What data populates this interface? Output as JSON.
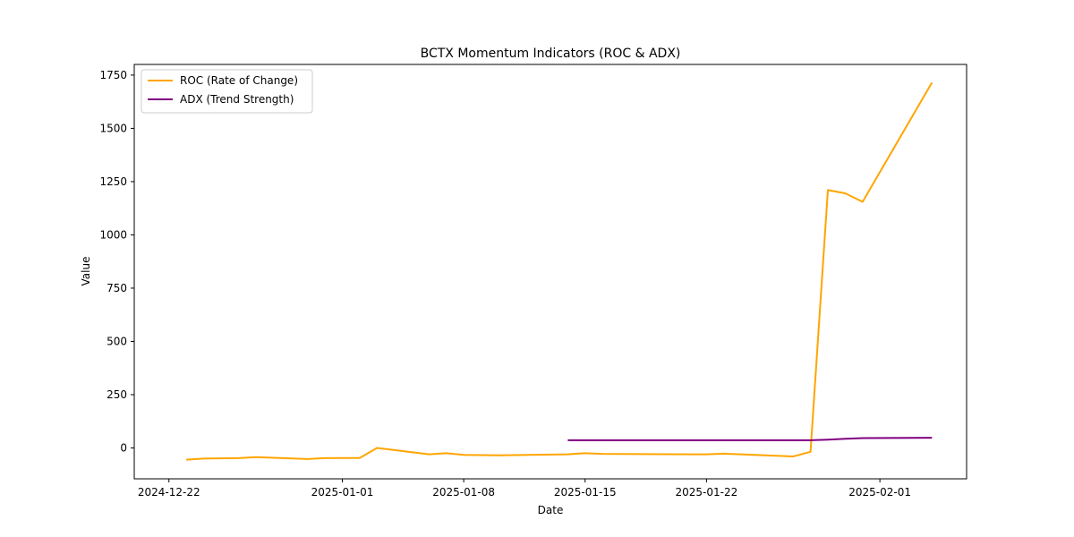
{
  "chart_data": {
    "type": "line",
    "title": "BCTX Momentum Indicators (ROC & ADX)",
    "xlabel": "Date",
    "ylabel": "Value",
    "x_ticks": [
      "2024-12-22",
      "2025-01-01",
      "2025-01-08",
      "2025-01-15",
      "2025-01-22",
      "2025-02-01"
    ],
    "x_range": [
      "2024-12-20",
      "2025-02-06"
    ],
    "y_ticks": [
      0,
      250,
      500,
      750,
      1000,
      1250,
      1500,
      1750
    ],
    "y_tick_labels": [
      "0",
      "250",
      "500",
      "750",
      "1000",
      "1250",
      "1500",
      "1750"
    ],
    "ylim": [
      -145,
      1800
    ],
    "grid": false,
    "legend_position": "upper-left",
    "series": [
      {
        "name": "ROC (Rate of Change)",
        "color": "#ffa500",
        "points": [
          {
            "x": "2024-12-23",
            "y": -55
          },
          {
            "x": "2024-12-24",
            "y": -50
          },
          {
            "x": "2024-12-26",
            "y": -48
          },
          {
            "x": "2024-12-27",
            "y": -43
          },
          {
            "x": "2024-12-30",
            "y": -52
          },
          {
            "x": "2024-12-31",
            "y": -48
          },
          {
            "x": "2025-01-02",
            "y": -47
          },
          {
            "x": "2025-01-03",
            "y": 0
          },
          {
            "x": "2025-01-06",
            "y": -30
          },
          {
            "x": "2025-01-07",
            "y": -25
          },
          {
            "x": "2025-01-08",
            "y": -33
          },
          {
            "x": "2025-01-10",
            "y": -35
          },
          {
            "x": "2025-01-14",
            "y": -30
          },
          {
            "x": "2025-01-15",
            "y": -25
          },
          {
            "x": "2025-01-16",
            "y": -28
          },
          {
            "x": "2025-01-21",
            "y": -30
          },
          {
            "x": "2025-01-22",
            "y": -30
          },
          {
            "x": "2025-01-23",
            "y": -27
          },
          {
            "x": "2025-01-27",
            "y": -40
          },
          {
            "x": "2025-01-28",
            "y": -18
          },
          {
            "x": "2025-01-29",
            "y": 1210
          },
          {
            "x": "2025-01-30",
            "y": 1195
          },
          {
            "x": "2025-01-31",
            "y": 1155
          },
          {
            "x": "2025-02-04",
            "y": 1715
          }
        ]
      },
      {
        "name": "ADX (Trend Strength)",
        "color": "#800080",
        "points": [
          {
            "x": "2025-01-14",
            "y": 36
          },
          {
            "x": "2025-01-21",
            "y": 36
          },
          {
            "x": "2025-01-23",
            "y": 36
          },
          {
            "x": "2025-01-28",
            "y": 36
          },
          {
            "x": "2025-01-29",
            "y": 39
          },
          {
            "x": "2025-01-30",
            "y": 43
          },
          {
            "x": "2025-01-31",
            "y": 46
          },
          {
            "x": "2025-02-04",
            "y": 48
          }
        ]
      }
    ]
  }
}
